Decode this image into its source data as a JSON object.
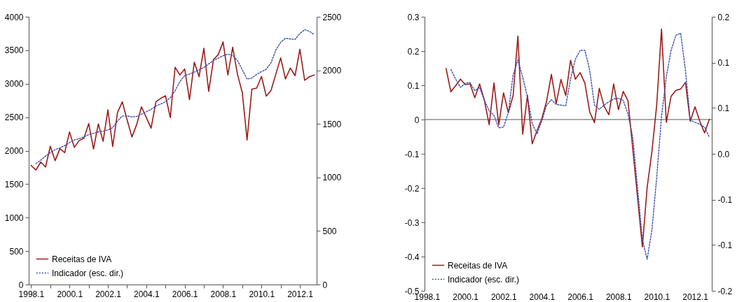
{
  "chart_data": [
    {
      "type": "line",
      "categories": [
        "1998.1",
        null,
        null,
        null,
        null,
        null,
        null,
        null,
        "2000.1",
        null,
        null,
        null,
        null,
        null,
        null,
        null,
        "2002.1",
        null,
        null,
        null,
        null,
        null,
        null,
        null,
        "2004.1",
        null,
        null,
        null,
        null,
        null,
        null,
        null,
        "2006.1",
        null,
        null,
        null,
        null,
        null,
        null,
        null,
        "2008.1",
        null,
        null,
        null,
        null,
        null,
        null,
        null,
        "2010.1",
        null,
        null,
        null,
        null,
        null,
        null,
        null,
        "2012.1",
        null,
        null,
        null
      ],
      "series": [
        {
          "name": "Receitas de IVA",
          "color": "#9b1c1c",
          "line_style": "solid",
          "values": [
            1780,
            1710,
            1830,
            1755,
            2065,
            1850,
            2030,
            1970,
            2280,
            2050,
            2150,
            2185,
            2405,
            2025,
            2400,
            2140,
            2610,
            2060,
            2570,
            2730,
            2460,
            2205,
            2390,
            2655,
            2495,
            2335,
            2730,
            2780,
            2820,
            2495,
            3245,
            3130,
            3220,
            2760,
            3320,
            3105,
            3530,
            2885,
            3360,
            3435,
            3625,
            3130,
            3545,
            3140,
            2870,
            2160,
            2920,
            2935,
            3110,
            2815,
            2900,
            3145,
            3385,
            3070,
            3235,
            3120,
            3515,
            3050,
            3105,
            3130
          ]
        },
        {
          "name": "Indicador (esc. dir.)",
          "color": "#3c4fb0",
          "line_style": "dotted",
          "axis": "y2",
          "values": [
            null,
            1130,
            1160,
            1200,
            1230,
            1260,
            1275,
            1297,
            1325,
            1350,
            1362,
            1378,
            1400,
            1412,
            1425,
            1432,
            1443,
            1465,
            1526,
            1574,
            1574,
            1565,
            1569,
            1591,
            1613,
            1635,
            1667,
            1685,
            1707,
            1744,
            1809,
            1896,
            1951,
            1966,
            1983,
            2005,
            2027,
            2060,
            2092,
            2114,
            2136,
            2151,
            2140,
            2092,
            2005,
            1918,
            1929,
            1962,
            1988,
            2010,
            2071,
            2190,
            2262,
            2299,
            2293,
            2289,
            2343,
            2380,
            2365,
            2332
          ]
        }
      ],
      "ylim": [
        0,
        4000
      ],
      "yticks": [
        0,
        500,
        1000,
        1500,
        2000,
        2500,
        3000,
        3500,
        4000
      ],
      "y2lim": [
        0,
        2500
      ],
      "y2ticks": [
        0,
        500,
        1000,
        1500,
        2000,
        2500
      ],
      "legend": "bottom left",
      "grid": false
    },
    {
      "type": "line",
      "categories": [
        "1998.1",
        null,
        null,
        null,
        null,
        null,
        null,
        null,
        "2000.1",
        null,
        null,
        null,
        null,
        null,
        null,
        null,
        "2002.1",
        null,
        null,
        null,
        null,
        null,
        null,
        null,
        "2004.1",
        null,
        null,
        null,
        null,
        null,
        null,
        null,
        "2006.1",
        null,
        null,
        null,
        null,
        null,
        null,
        null,
        "2008.1",
        null,
        null,
        null,
        null,
        null,
        null,
        null,
        "2010.1",
        null,
        null,
        null,
        null,
        null,
        null,
        null,
        "2012.1",
        null,
        null,
        null
      ],
      "series": [
        {
          "name": "Receitas de IVA",
          "color": "#9b1c1c",
          "line_style": "solid",
          "values": [
            null,
            null,
            null,
            null,
            0.149,
            0.081,
            0.099,
            0.118,
            0.102,
            0.104,
            0.064,
            0.104,
            0.056,
            -0.015,
            0.107,
            -0.015,
            0.078,
            0.02,
            0.07,
            0.244,
            -0.043,
            0.071,
            -0.071,
            -0.032,
            0.003,
            0.054,
            0.132,
            0.046,
            0.117,
            0.07,
            0.173,
            0.118,
            0.137,
            0.106,
            0.022,
            -0.009,
            0.091,
            0.039,
            0.014,
            0.104,
            0.029,
            0.082,
            0.055,
            -0.086,
            -0.228,
            -0.372,
            -0.198,
            -0.093,
            0.043,
            0.264,
            -0.008,
            0.068,
            0.085,
            0.089,
            0.109,
            -0.005,
            0.037,
            -0.005,
            -0.039,
            0.001
          ]
        },
        {
          "name": "Indicador (esc. dir.)",
          "color": "#3c4fb0",
          "line_style": "dotted",
          "axis": "y2",
          "values": [
            null,
            null,
            null,
            null,
            null,
            0.123,
            0.109,
            0.097,
            0.103,
            0.104,
            0.092,
            0.097,
            0.078,
            0.063,
            0.056,
            0.038,
            0.039,
            0.06,
            0.115,
            0.137,
            0.112,
            0.083,
            0.044,
            0.029,
            0.048,
            0.071,
            0.079,
            0.072,
            0.071,
            0.07,
            0.109,
            0.138,
            0.151,
            0.151,
            0.122,
            0.071,
            0.065,
            0.071,
            0.076,
            0.08,
            0.081,
            0.078,
            0.058,
            0.024,
            -0.05,
            -0.125,
            -0.154,
            -0.111,
            -0.034,
            0.054,
            0.112,
            0.151,
            0.173,
            0.176,
            0.122,
            0.049,
            0.046,
            0.043,
            0.039,
            0.024
          ]
        }
      ],
      "ylim": [
        -0.5,
        0.3
      ],
      "yticks": [
        -0.5,
        -0.4,
        -0.3,
        -0.2,
        -0.1,
        0,
        0.1,
        0.2,
        0.3
      ],
      "y2lim": [
        -0.2,
        0.2
      ],
      "y2ticks": [
        {
          "value": -0.2,
          "label": "-0.2"
        },
        {
          "value": -0.133,
          "label": "-0.1"
        },
        {
          "value": -0.067,
          "label": "-0.1"
        },
        {
          "value": 0,
          "label": "0.0"
        },
        {
          "value": 0.067,
          "label": "0.1"
        },
        {
          "value": 0.133,
          "label": "0.1"
        },
        {
          "value": 0.2,
          "label": "0.2"
        }
      ],
      "ref_lines": [
        {
          "axis": "y",
          "value": 0,
          "color": "#555555"
        }
      ],
      "legend": "bottom left",
      "grid": false
    }
  ]
}
